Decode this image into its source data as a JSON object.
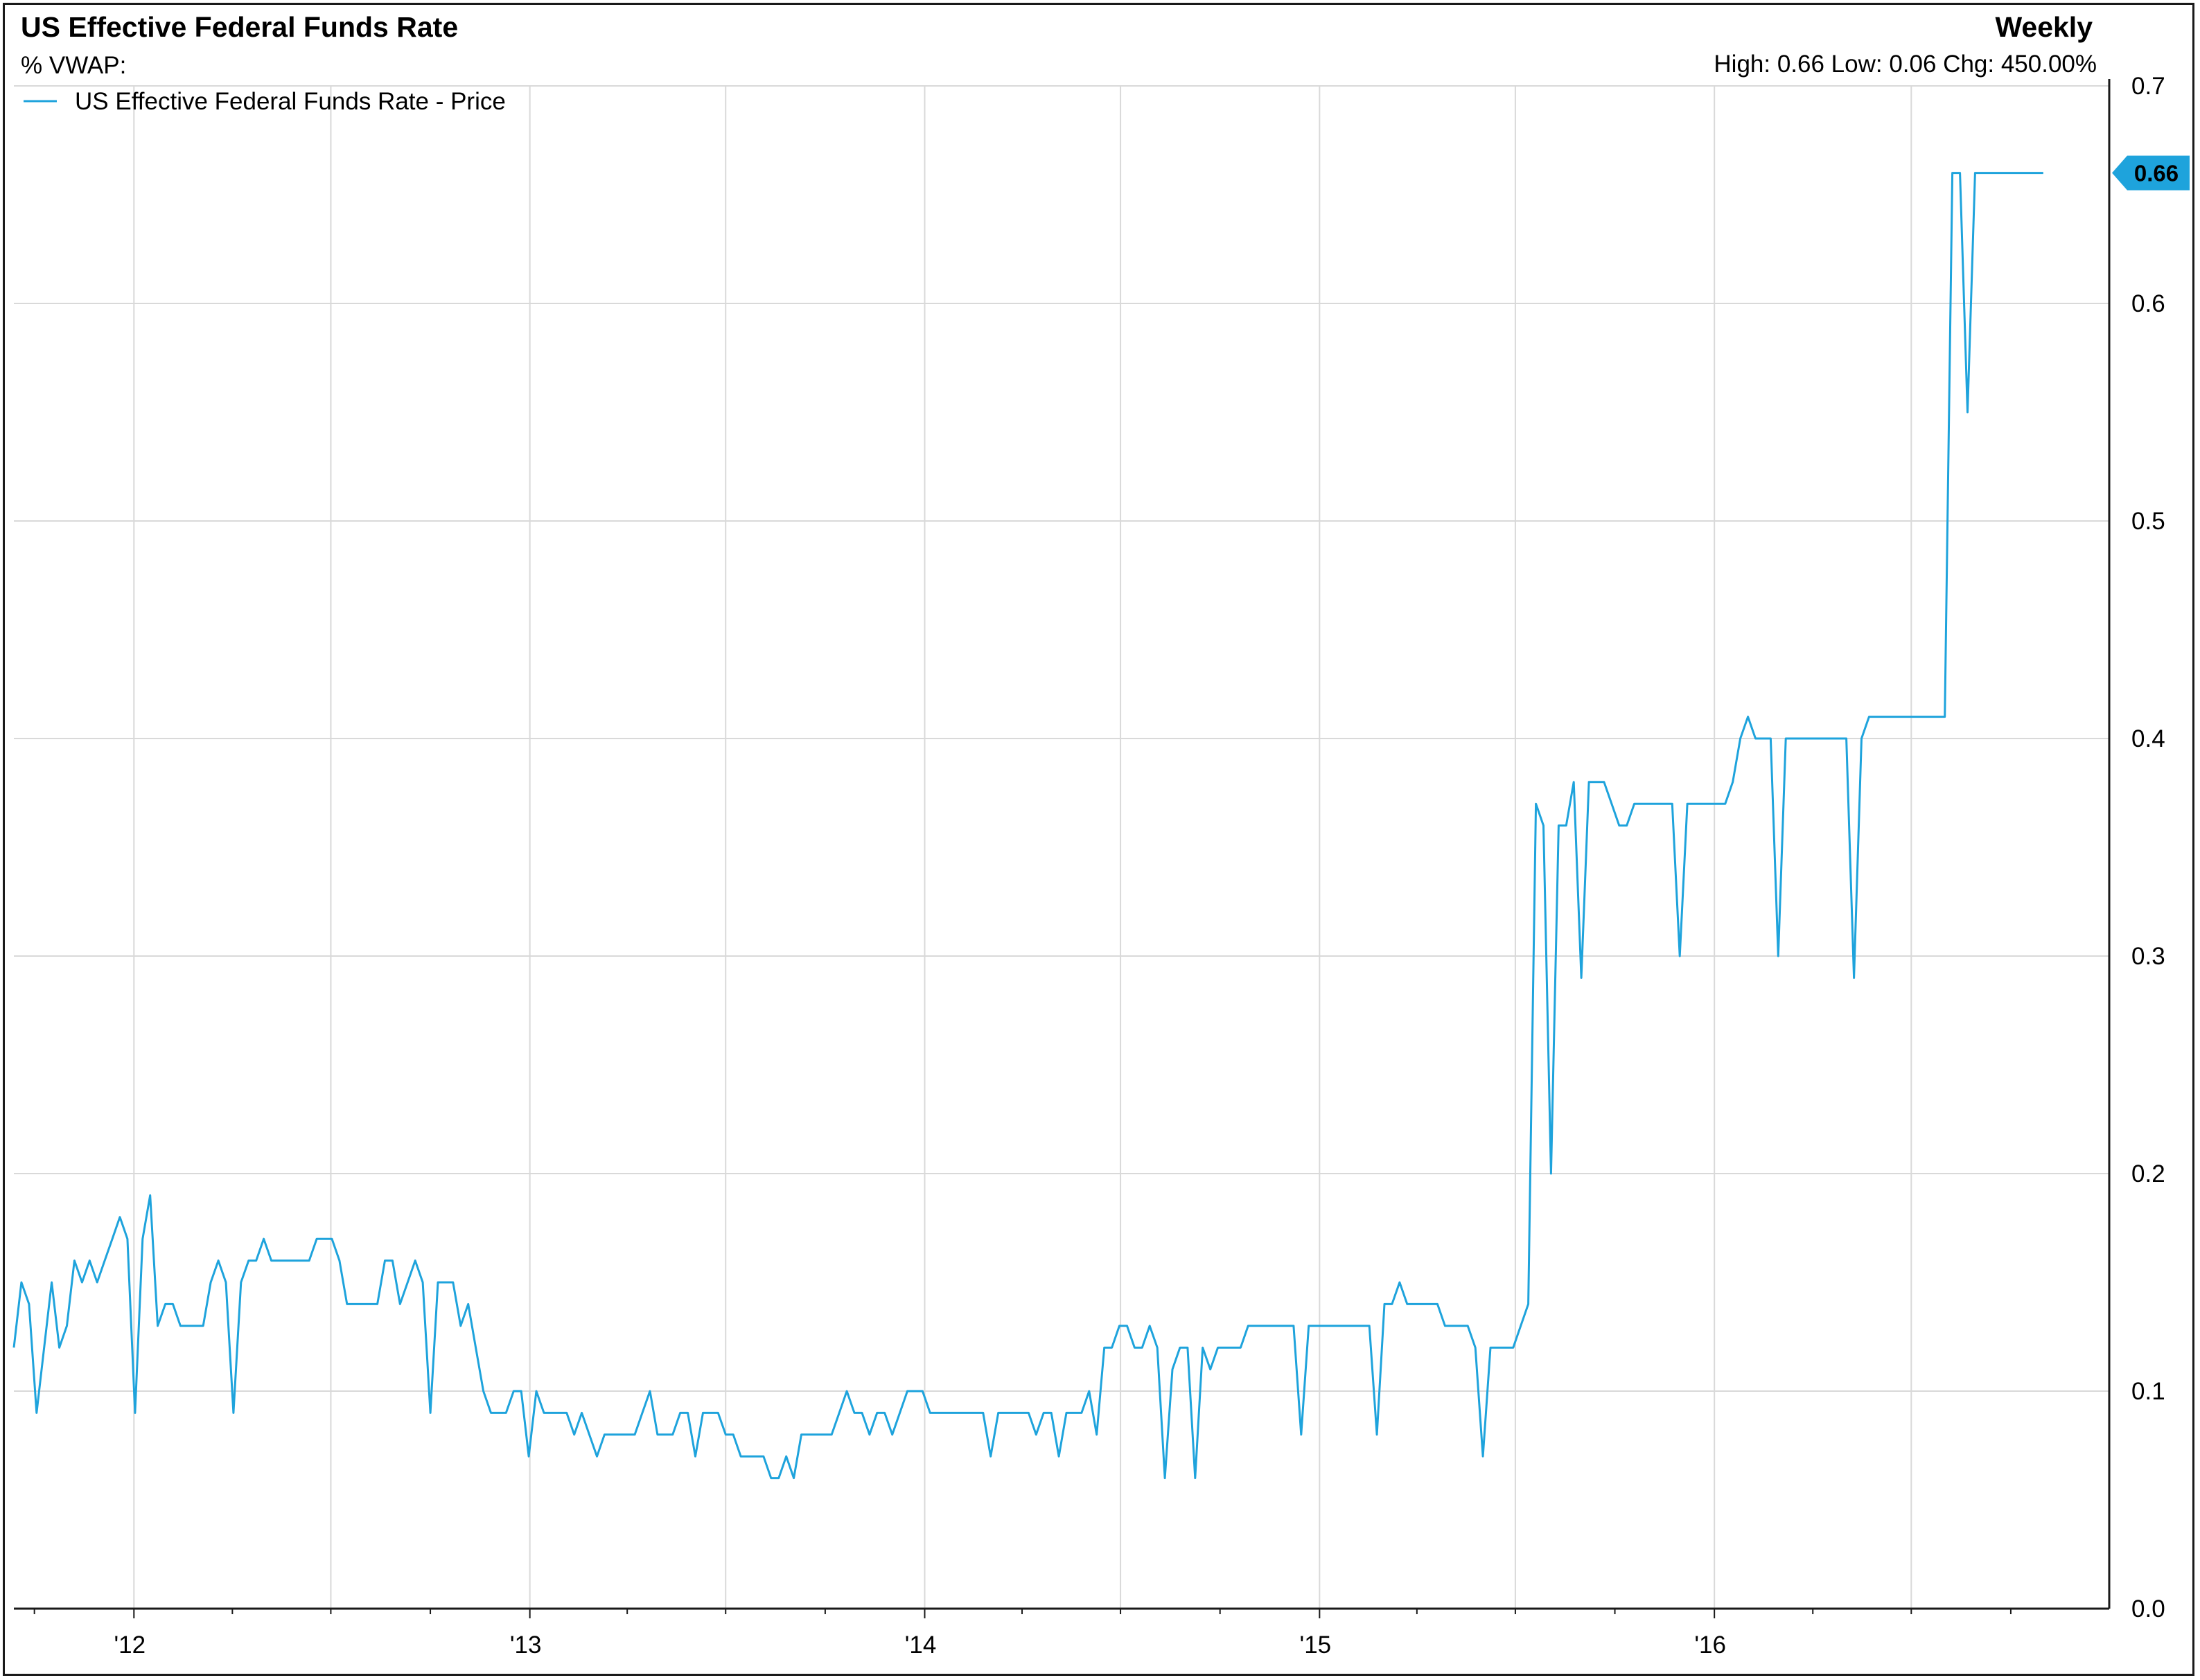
{
  "header": {
    "title": "US Effective Federal Funds Rate",
    "subtitle": "% VWAP:",
    "period": "Weekly",
    "stats": "High: 0.66 Low: 0.06 Chg: 450.00%"
  },
  "legend": {
    "label": "US Effective Federal Funds Rate - Price",
    "placement": "top-left"
  },
  "last_value_label": "0.66",
  "colors": {
    "series": "#1ea3dc",
    "grid": "#d9d9d9",
    "badge": "#1ea3dc",
    "axis": "#1a1a1a"
  },
  "chart_data": {
    "type": "line",
    "title": "US Effective Federal Funds Rate",
    "xlabel": "",
    "ylabel": "",
    "frequency": "weekly",
    "xlim": [
      "2011-09-12",
      "2016-12-31"
    ],
    "ylim": [
      0.0,
      0.7
    ],
    "y_ticks": [
      0.0,
      0.1,
      0.2,
      0.3,
      0.4,
      0.5,
      0.6,
      0.7
    ],
    "y_tick_labels": [
      "0.0",
      "0.1",
      "0.2",
      "0.3",
      "0.4",
      "0.5",
      "0.6",
      "0.7"
    ],
    "x_tick_labels": [
      "'12",
      "'13",
      "'14",
      "'15",
      "'16"
    ],
    "x_tick_dates": [
      "2012-01-01",
      "2013-01-01",
      "2014-01-01",
      "2015-01-01",
      "2016-01-01"
    ],
    "grid": true,
    "series": [
      {
        "name": "US Effective Federal Funds Rate - Price",
        "values": [
          0.12,
          0.15,
          0.14,
          0.09,
          0.12,
          0.15,
          0.12,
          0.13,
          0.16,
          0.15,
          0.16,
          0.15,
          0.16,
          0.17,
          0.18,
          0.17,
          0.09,
          0.17,
          0.19,
          0.13,
          0.14,
          0.14,
          0.13,
          0.13,
          0.13,
          0.13,
          0.15,
          0.16,
          0.15,
          0.09,
          0.15,
          0.16,
          0.16,
          0.17,
          0.16,
          0.16,
          0.16,
          0.16,
          0.16,
          0.16,
          0.17,
          0.17,
          0.17,
          0.16,
          0.14,
          0.14,
          0.14,
          0.14,
          0.14,
          0.16,
          0.16,
          0.14,
          0.15,
          0.16,
          0.15,
          0.09,
          0.15,
          0.15,
          0.15,
          0.13,
          0.14,
          0.12,
          0.1,
          0.09,
          0.09,
          0.09,
          0.1,
          0.1,
          0.07,
          0.1,
          0.09,
          0.09,
          0.09,
          0.09,
          0.08,
          0.09,
          0.08,
          0.07,
          0.08,
          0.08,
          0.08,
          0.08,
          0.08,
          0.09,
          0.1,
          0.08,
          0.08,
          0.08,
          0.09,
          0.09,
          0.07,
          0.09,
          0.09,
          0.09,
          0.08,
          0.08,
          0.07,
          0.07,
          0.07,
          0.07,
          0.06,
          0.06,
          0.07,
          0.06,
          0.08,
          0.08,
          0.08,
          0.08,
          0.08,
          0.09,
          0.1,
          0.09,
          0.09,
          0.08,
          0.09,
          0.09,
          0.08,
          0.09,
          0.1,
          0.1,
          0.1,
          0.09,
          0.09,
          0.09,
          0.09,
          0.09,
          0.09,
          0.09,
          0.09,
          0.07,
          0.09,
          0.09,
          0.09,
          0.09,
          0.09,
          0.08,
          0.09,
          0.09,
          0.07,
          0.09,
          0.09,
          0.09,
          0.1,
          0.08,
          0.12,
          0.12,
          0.13,
          0.13,
          0.12,
          0.12,
          0.13,
          0.12,
          0.06,
          0.11,
          0.12,
          0.12,
          0.06,
          0.12,
          0.11,
          0.12,
          0.12,
          0.12,
          0.12,
          0.13,
          0.13,
          0.13,
          0.13,
          0.13,
          0.13,
          0.13,
          0.08,
          0.13,
          0.13,
          0.13,
          0.13,
          0.13,
          0.13,
          0.13,
          0.13,
          0.13,
          0.08,
          0.14,
          0.14,
          0.15,
          0.14,
          0.14,
          0.14,
          0.14,
          0.14,
          0.13,
          0.13,
          0.13,
          0.13,
          0.12,
          0.07,
          0.12,
          0.12,
          0.12,
          0.12,
          0.13,
          0.14,
          0.37,
          0.36,
          0.2,
          0.36,
          0.36,
          0.38,
          0.29,
          0.38,
          0.38,
          0.38,
          0.37,
          0.36,
          0.36,
          0.37,
          0.37,
          0.37,
          0.37,
          0.37,
          0.37,
          0.3,
          0.37,
          0.37,
          0.37,
          0.37,
          0.37,
          0.37,
          0.38,
          0.4,
          0.41,
          0.4,
          0.4,
          0.4,
          0.3,
          0.4,
          0.4,
          0.4,
          0.4,
          0.4,
          0.4,
          0.4,
          0.4,
          0.4,
          0.29,
          0.4,
          0.41,
          0.41,
          0.41,
          0.41,
          0.41,
          0.41,
          0.41,
          0.41,
          0.41,
          0.41,
          0.41,
          0.66,
          0.66,
          0.55,
          0.66,
          0.66,
          0.66,
          0.66,
          0.66,
          0.66,
          0.66,
          0.66,
          0.66,
          0.66
        ]
      }
    ]
  }
}
